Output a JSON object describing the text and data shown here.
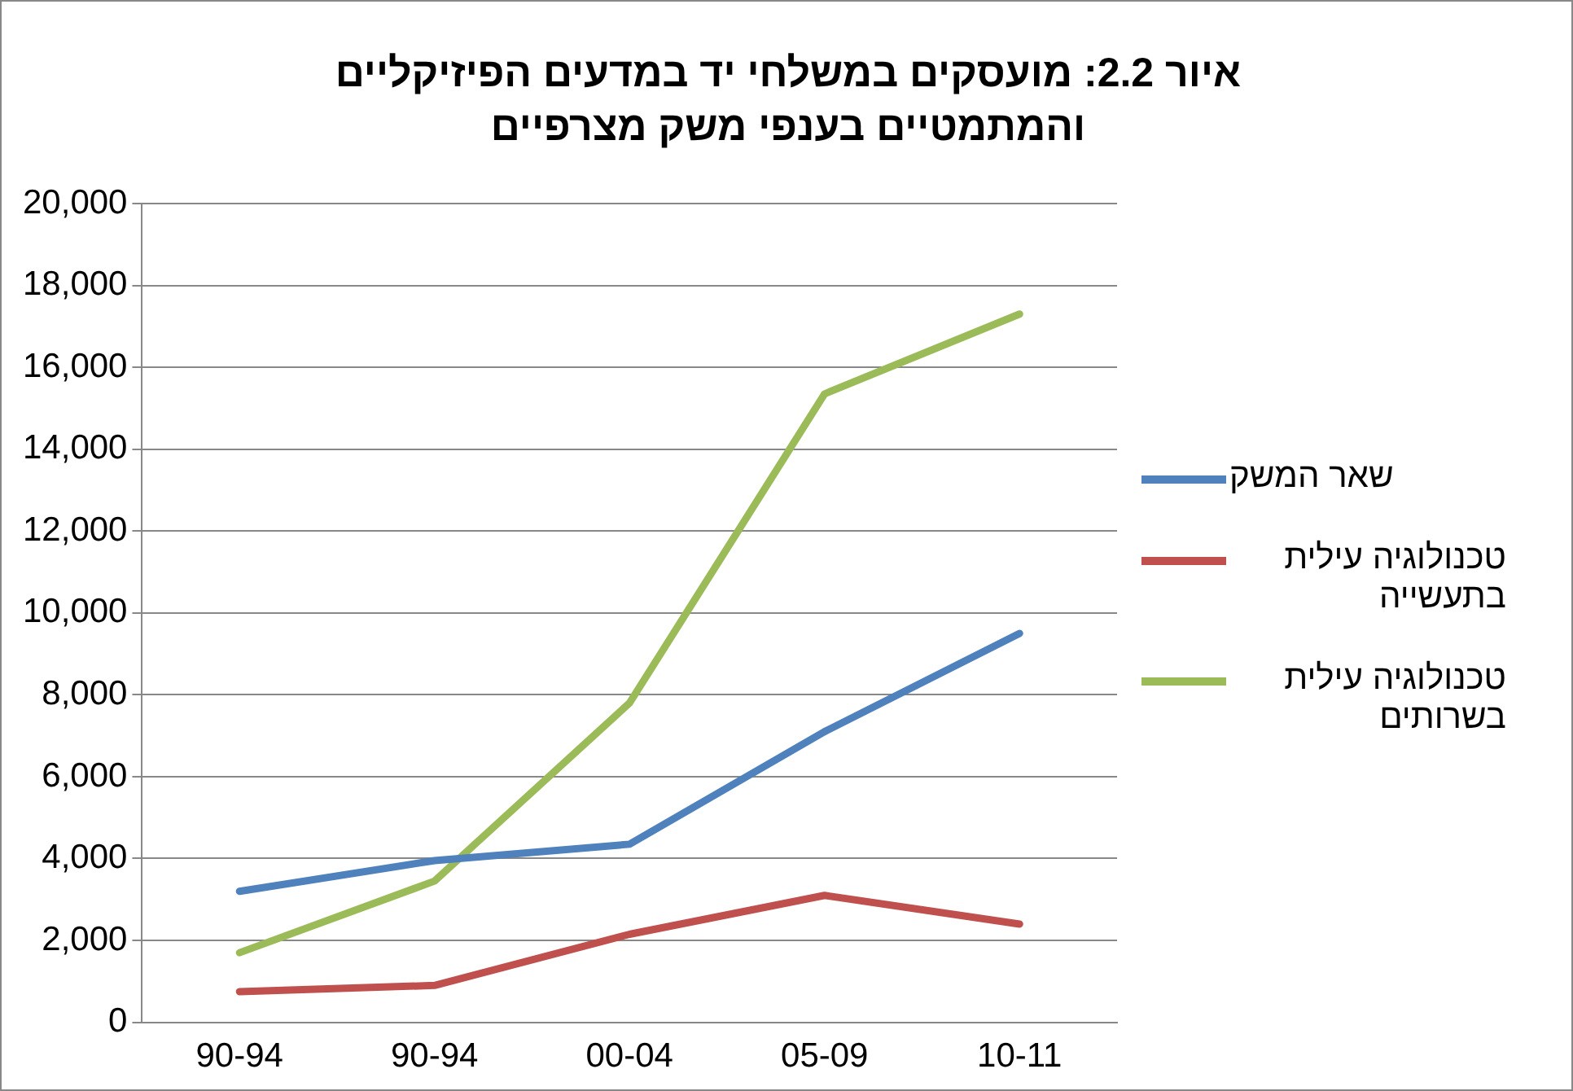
{
  "chart_data": {
    "type": "line",
    "title": "איור 2.2: מועסקים במשלחי יד במדעים הפיזיקליים\nוהמתמטיים בענפי משק מצרפיים",
    "categories": [
      "90-94",
      "90-94",
      "00-04",
      "05-09",
      "10-11"
    ],
    "series": [
      {
        "name": "שאר המשק",
        "color": "#4f81bd",
        "values": [
          3200,
          3950,
          4350,
          7100,
          9500
        ]
      },
      {
        "name": "טכנולוגיה עילית בתעשייה",
        "color": "#c0504d",
        "values": [
          750,
          900,
          2150,
          3100,
          2400
        ]
      },
      {
        "name": "טכנולוגיה עילית בשרותים",
        "color": "#9bbb59",
        "values": [
          1700,
          3450,
          7800,
          15350,
          17300
        ]
      }
    ],
    "ylim": [
      0,
      20000
    ],
    "yticks": [
      0,
      {
        "value": 2000,
        "label": "2,000"
      },
      {
        "value": 4000,
        "label": "4,000"
      },
      {
        "value": 6000,
        "label": "6,000"
      },
      {
        "value": 8000,
        "label": "8,000"
      },
      {
        "value": 10000,
        "label": "10,000"
      },
      {
        "value": 12000,
        "label": "12,000"
      },
      {
        "value": 14000,
        "label": "14,000"
      },
      {
        "value": 16000,
        "label": "16,000"
      },
      {
        "value": 18000,
        "label": "18,000"
      },
      {
        "value": 20000,
        "label": "20,000"
      }
    ],
    "grid": "y",
    "legend": "right",
    "marker": "none",
    "line_style": "solid"
  }
}
